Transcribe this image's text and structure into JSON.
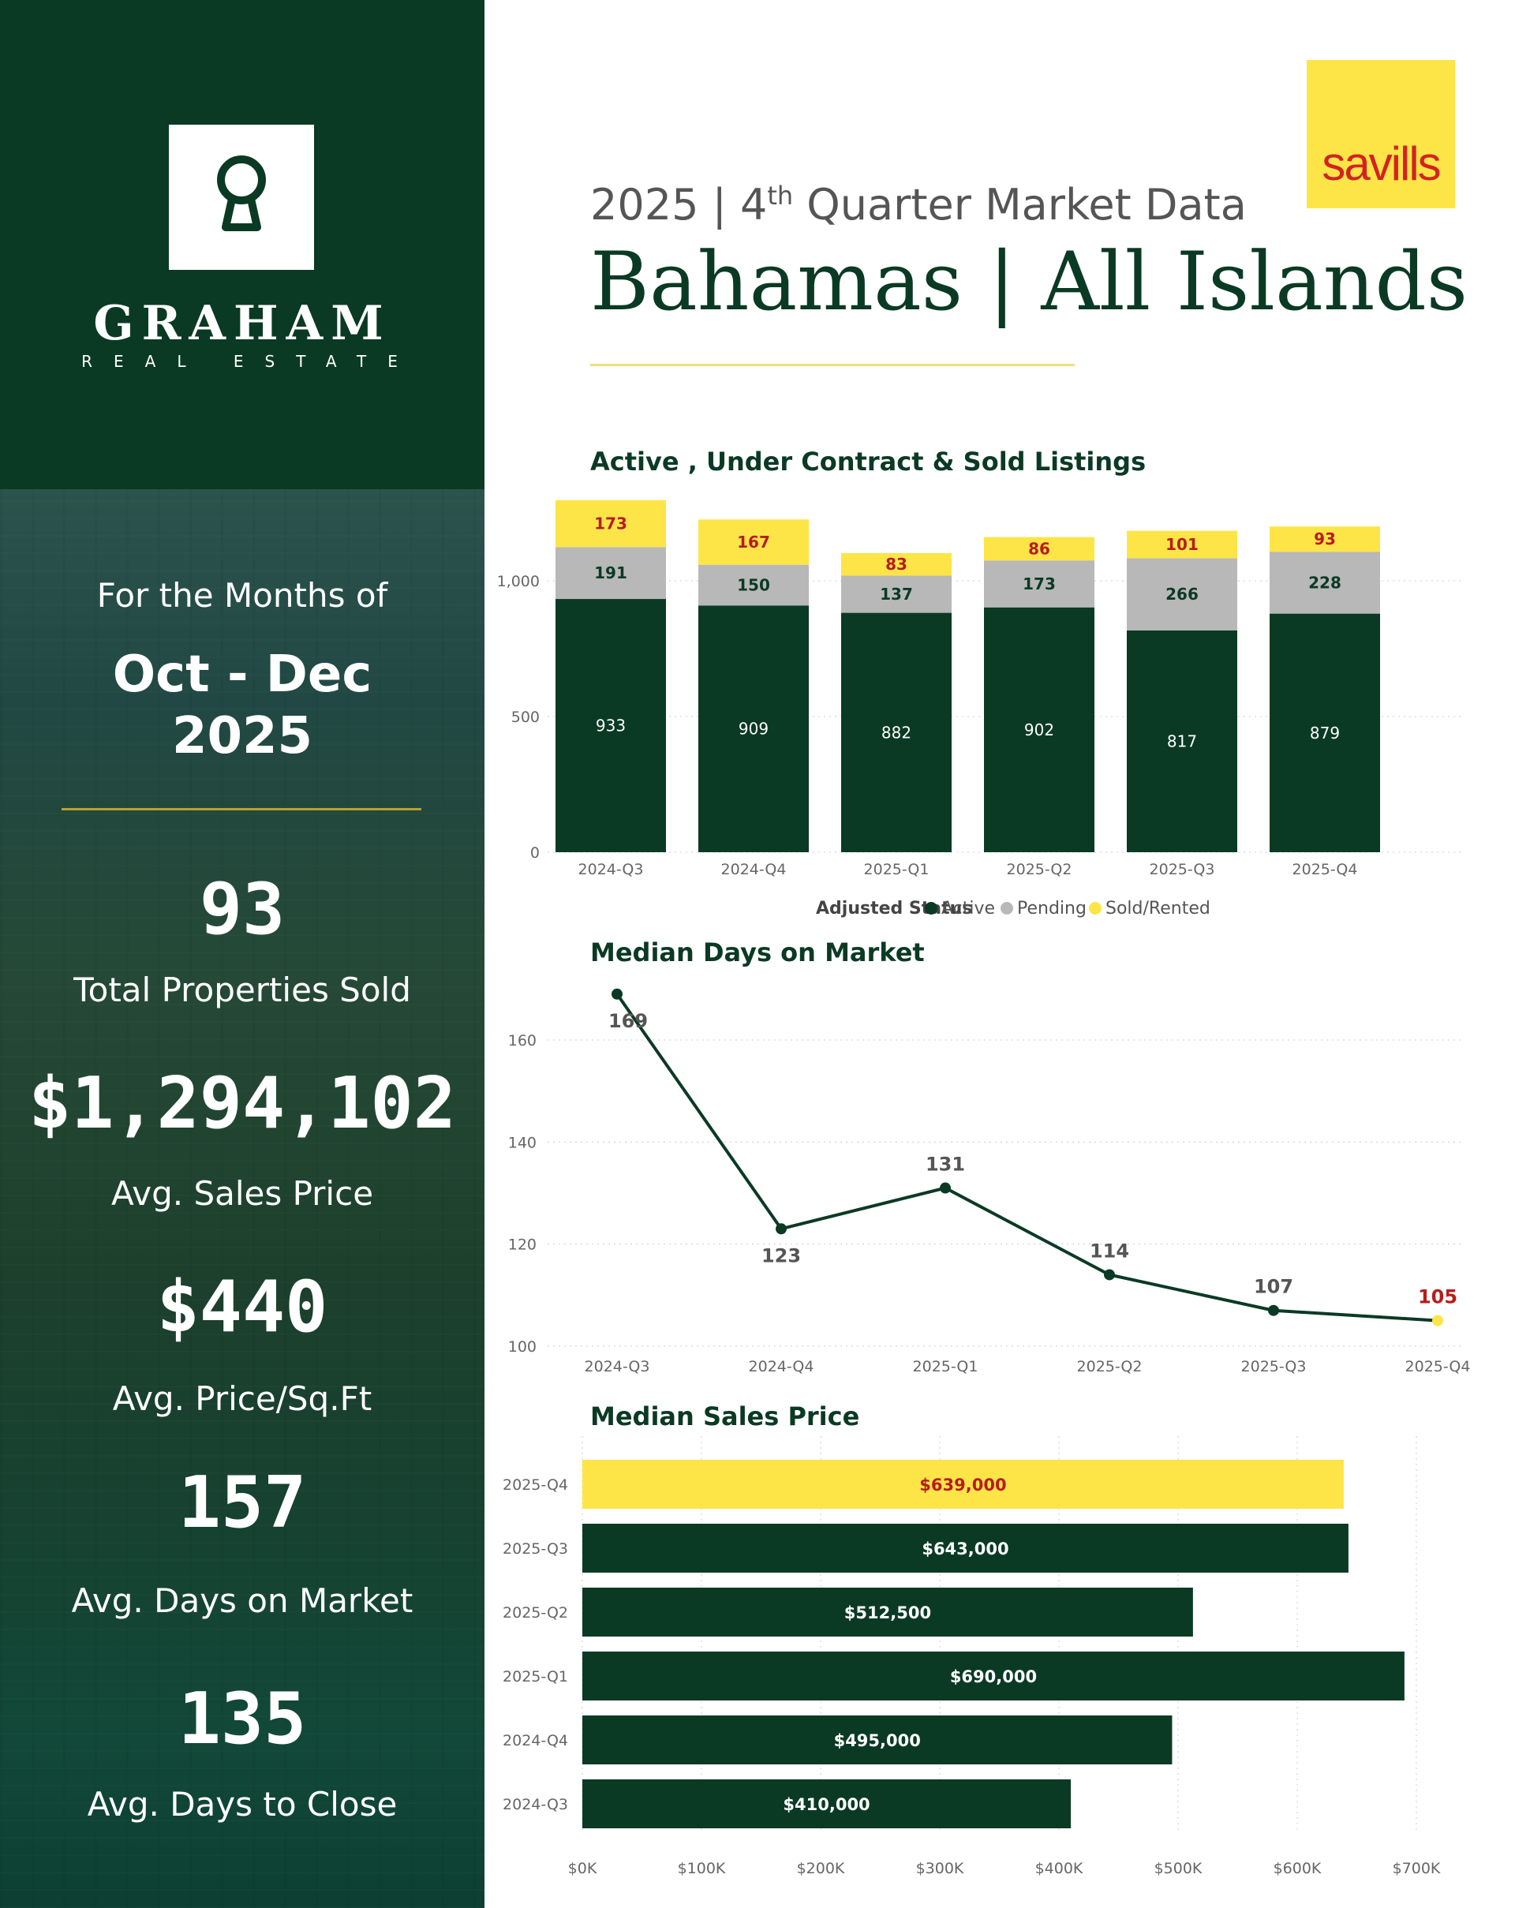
{
  "brand": {
    "name": "GRAHAM",
    "sub": "REAL ESTATE",
    "logo_icon": "keyhole-logo-icon",
    "partner": "savills",
    "colors": {
      "primary": "#0b3a24",
      "accent": "#fde547",
      "partner_text": "#d42222",
      "pending": "#b8b8b8"
    }
  },
  "sidebar": {
    "period_label": "For the Months of",
    "period_months": "Oct - Dec",
    "period_year": "2025",
    "stats": [
      {
        "value": "93",
        "label": "Total Properties Sold"
      },
      {
        "value": "$1,294,102",
        "label": "Avg. Sales Price"
      },
      {
        "value": "$440",
        "label": "Avg. Price/Sq.Ft"
      },
      {
        "value": "157",
        "label": "Avg. Days on Market"
      },
      {
        "value": "135",
        "label": "Avg. Days to Close"
      }
    ]
  },
  "header": {
    "year": "2025 | 4",
    "sup": "th",
    "subtitle_rest": " Quarter Market Data",
    "title": "Bahamas | All Islands"
  },
  "chart_data": [
    {
      "type": "bar",
      "stacked": true,
      "title": "Active , Under Contract & Sold Listings",
      "categories": [
        "2024-Q3",
        "2024-Q4",
        "2025-Q1",
        "2025-Q2",
        "2025-Q3",
        "2025-Q4"
      ],
      "series": [
        {
          "name": "Active",
          "color": "#0b3a24",
          "values": [
            933,
            909,
            882,
            902,
            817,
            879
          ]
        },
        {
          "name": "Pending",
          "color": "#b8b8b8",
          "values": [
            191,
            150,
            137,
            173,
            266,
            228
          ]
        },
        {
          "name": "Sold/Rented",
          "color": "#fde547",
          "values": [
            173,
            167,
            83,
            86,
            101,
            93
          ]
        }
      ],
      "yticks": [
        "0",
        "500",
        "1,000"
      ],
      "ylim": [
        0,
        1300
      ],
      "legend_title": "Adjusted Status",
      "legend_position": "bottom"
    },
    {
      "type": "line",
      "title": "Median Days on Market",
      "categories": [
        "2024-Q3",
        "2024-Q4",
        "2025-Q1",
        "2025-Q2",
        "2025-Q3",
        "2025-Q4"
      ],
      "values": [
        169,
        123,
        131,
        114,
        107,
        105
      ],
      "yticks": [
        "100",
        "120",
        "140",
        "160"
      ],
      "ylim": [
        100,
        170
      ]
    },
    {
      "type": "bar",
      "orientation": "horizontal",
      "title": "Median Sales Price",
      "categories": [
        "2025-Q4",
        "2025-Q3",
        "2025-Q2",
        "2025-Q1",
        "2024-Q4",
        "2024-Q3"
      ],
      "values": [
        639000,
        643000,
        512500,
        690000,
        495000,
        410000
      ],
      "value_labels": [
        "$639,000",
        "$643,000",
        "$512,500",
        "$690,000",
        "$495,000",
        "$410,000"
      ],
      "xticks": [
        "$0K",
        "$100K",
        "$200K",
        "$300K",
        "$400K",
        "$500K",
        "$600K",
        "$700K"
      ],
      "xlim": [
        0,
        700000
      ]
    }
  ]
}
